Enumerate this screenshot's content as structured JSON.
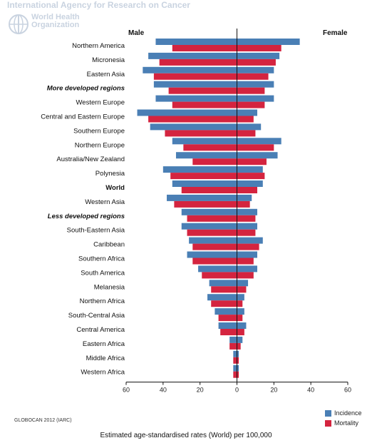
{
  "header": {
    "agency": "International Agency for Research on Cancer",
    "who_line1": "World Health",
    "who_line2": "Organization"
  },
  "chart_data": {
    "type": "bar",
    "orientation": "horizontal-pyramid",
    "left_label": "Male",
    "right_label": "Female",
    "xlabel": "Estimated age-standardised rates (World) per 100,000",
    "xlim": [
      -60,
      60
    ],
    "ticks": [
      -60,
      -40,
      -20,
      0,
      20,
      40,
      60
    ],
    "tick_labels": [
      "60",
      "40",
      "20",
      "0",
      "20",
      "40",
      "60"
    ],
    "categories": [
      "Northern America",
      "Micronesia",
      "Eastern Asia",
      "More developed regions",
      "Western Europe",
      "Central and Eastern Europe",
      "Southern Europe",
      "Northern Europe",
      "Australia/New Zealand",
      "Polynesia",
      "World",
      "Western Asia",
      "Less developed regions",
      "South-Eastern Asia",
      "Caribbean",
      "Southern Africa",
      "South America",
      "Melanesia",
      "Northern Africa",
      "South-Central Asia",
      "Central America",
      "Eastern Africa",
      "Middle Africa",
      "Western Africa"
    ],
    "category_style": [
      "normal",
      "normal",
      "normal",
      "bold-italic",
      "normal",
      "normal",
      "normal",
      "normal",
      "normal",
      "normal",
      "bold",
      "normal",
      "bold-italic",
      "normal",
      "normal",
      "normal",
      "normal",
      "normal",
      "normal",
      "normal",
      "normal",
      "normal",
      "normal",
      "normal"
    ],
    "series": [
      {
        "name": "Incidence",
        "color": "#4a7fb5",
        "male": [
          44,
          48,
          51,
          45,
          44,
          54,
          47,
          35,
          33,
          40,
          35,
          38,
          30,
          30,
          26,
          27,
          21,
          15,
          16,
          12,
          10,
          4,
          2,
          2
        ],
        "female": [
          34,
          23,
          20,
          20,
          20,
          11,
          13,
          24,
          22,
          14,
          14,
          8,
          11,
          11,
          14,
          11,
          11,
          6,
          4,
          4,
          5,
          3,
          1,
          1
        ]
      },
      {
        "name": "Mortality",
        "color": "#d4243f",
        "male": [
          35,
          42,
          45,
          37,
          35,
          48,
          39,
          29,
          24,
          36,
          30,
          34,
          27,
          27,
          24,
          24,
          19,
          14,
          14,
          10,
          9,
          4,
          2,
          2
        ],
        "female": [
          24,
          21,
          17,
          15,
          15,
          9,
          10,
          20,
          16,
          15,
          11,
          7,
          10,
          10,
          12,
          9,
          9,
          5,
          3,
          3,
          4,
          2,
          1,
          1
        ]
      }
    ],
    "legend_position": "bottom-right",
    "grid": false
  },
  "footer": {
    "source": "GLOBOCAN 2012 (IARC)"
  }
}
